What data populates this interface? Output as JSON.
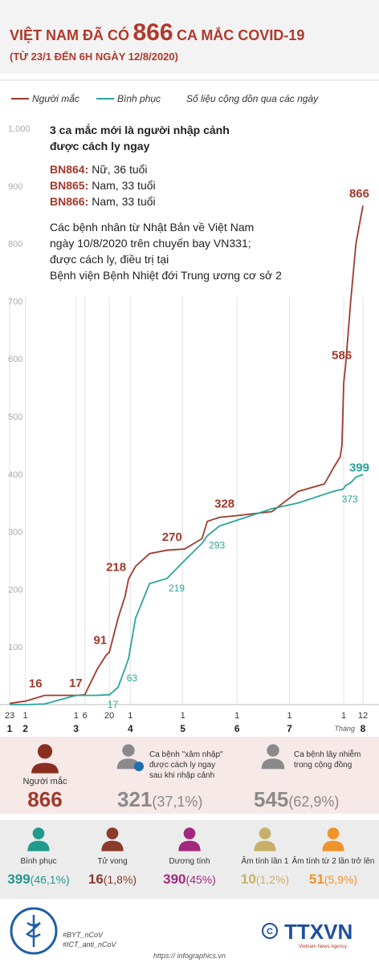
{
  "header": {
    "title_pre": "VIỆT NAM ĐÃ CÓ",
    "title_number": "866",
    "title_post": "CA MẮC COVID-19",
    "subtitle": "(TỪ 23/1 ĐẾN 6H NGÀY 12/8/2020)"
  },
  "chart_data": {
    "type": "line",
    "note": "Số liệu cộng dồn qua các ngày",
    "x": [
      0,
      9,
      20,
      38,
      43,
      45,
      50,
      55,
      57,
      62,
      66,
      68,
      72,
      80,
      90,
      100,
      110,
      113,
      120,
      130,
      150,
      165,
      180,
      185,
      189,
      190,
      191,
      192,
      195,
      198,
      202
    ],
    "series": [
      {
        "name": "Người mắc",
        "color": "#a0392c",
        "values": [
          2,
          6,
          16,
          16,
          17,
          30,
          61,
          85,
          91,
          150,
          188,
          218,
          240,
          262,
          268,
          270,
          288,
          318,
          325,
          328,
          335,
          370,
          383,
          410,
          430,
          450,
          558,
          586,
          700,
          800,
          866
        ],
        "value_labels": [
          null,
          null,
          "16",
          null,
          "17",
          null,
          null,
          null,
          "91",
          null,
          null,
          "218",
          null,
          null,
          null,
          "270",
          null,
          null,
          null,
          "328",
          null,
          null,
          null,
          null,
          null,
          null,
          null,
          "586",
          null,
          null,
          "866"
        ]
      },
      {
        "name": "Bình phục",
        "color": "#2aa59a",
        "values": [
          0,
          0,
          1,
          16,
          16,
          16,
          16,
          17,
          17,
          30,
          63,
          80,
          150,
          210,
          219,
          250,
          280,
          293,
          310,
          320,
          340,
          350,
          365,
          370,
          373,
          373,
          375,
          380,
          385,
          395,
          399
        ],
        "value_labels": [
          null,
          null,
          null,
          null,
          null,
          null,
          null,
          "17",
          null,
          null,
          "63",
          null,
          null,
          null,
          "219",
          null,
          null,
          "293",
          null,
          null,
          null,
          null,
          null,
          null,
          "373",
          null,
          null,
          null,
          null,
          null,
          "399"
        ]
      }
    ],
    "xlim": [
      0,
      202
    ],
    "xticks": [
      {
        "value": 0,
        "label": "23"
      },
      {
        "value": 9,
        "label": "1"
      },
      {
        "value": 38,
        "label": "1"
      },
      {
        "value": 43,
        "label": "6"
      },
      {
        "value": 57,
        "label": "20"
      },
      {
        "value": 69,
        "label": "1"
      },
      {
        "value": 99,
        "label": "1"
      },
      {
        "value": 130,
        "label": "1"
      },
      {
        "value": 160,
        "label": "1"
      },
      {
        "value": 191,
        "label": "1"
      },
      {
        "value": 202,
        "label": "12"
      }
    ],
    "months": [
      {
        "value": 0,
        "label": "1"
      },
      {
        "value": 9,
        "label": "2"
      },
      {
        "value": 38,
        "label": "3"
      },
      {
        "value": 69,
        "label": "4"
      },
      {
        "value": 99,
        "label": "5"
      },
      {
        "value": 130,
        "label": "6"
      },
      {
        "value": 160,
        "label": "7"
      },
      {
        "value": 202,
        "label": "8"
      }
    ],
    "month_word": "Tháng",
    "ylim": [
      0,
      1000
    ],
    "yticks": [
      100,
      200,
      300,
      400,
      500,
      600,
      700,
      800,
      900,
      {
        "value": 1000,
        "label": "1,000"
      }
    ],
    "annotation": {
      "heading": [
        "3 ca mắc mới là người nhập cảnh",
        "được cách ly ngay"
      ],
      "cases": [
        {
          "id": "BN864:",
          "info": "Nữ, 36 tuổi"
        },
        {
          "id": "BN865:",
          "info": "Nam, 33 tuổi"
        },
        {
          "id": "BN866:",
          "info": "Nam, 33 tuổi"
        }
      ],
      "body": [
        "Các bệnh nhân từ Nhật Bản về Việt Nam",
        "ngày 10/8/2020 trên chuyến bay VN331;",
        "được cách ly, điều trị tại",
        "Bệnh viện Bệnh Nhiệt đới Trung ương cơ sở 2"
      ]
    }
  },
  "summary": [
    {
      "label": [
        "Người mắc"
      ],
      "value": 866,
      "color": "#8b2e22"
    },
    {
      "label": [
        "Ca bệnh \"xâm nhập\"",
        "được cách ly ngay",
        "sau khi nhập cảnh"
      ],
      "value": 321,
      "pct": "(37,1%)",
      "color": "#8a8a8a"
    },
    {
      "label": [
        "Ca bệnh lây nhiễm",
        "trong cộng đồng"
      ],
      "value": 545,
      "pct": "(62,9%)",
      "color": "#8a8a8a"
    }
  ],
  "outcomes": [
    {
      "label": "Bình phục",
      "value": 399,
      "pct": "(46,1%)",
      "color": "#1f9a8c"
    },
    {
      "label": "Tử vong",
      "value": 16,
      "pct": "(1,8%)",
      "color": "#8b3a2b"
    },
    {
      "label": "Dương tính",
      "value": 390,
      "pct": "(45%)",
      "color": "#a3287d"
    },
    {
      "label": "Âm tính lần 1",
      "value": 10,
      "pct": "(1,2%)",
      "color": "#c8b06a"
    },
    {
      "label": "Âm tính từ 2 lần trở lên",
      "value": 51,
      "pct": "(5,9%)",
      "color": "#f0932b"
    }
  ],
  "footer": {
    "tags": [
      "#BYT_nCoV",
      "#ICT_anti_nCoV"
    ],
    "agency": "TTXVN",
    "agency_en": "Vietnam News Agency",
    "url": "https:// infographics.vn"
  }
}
